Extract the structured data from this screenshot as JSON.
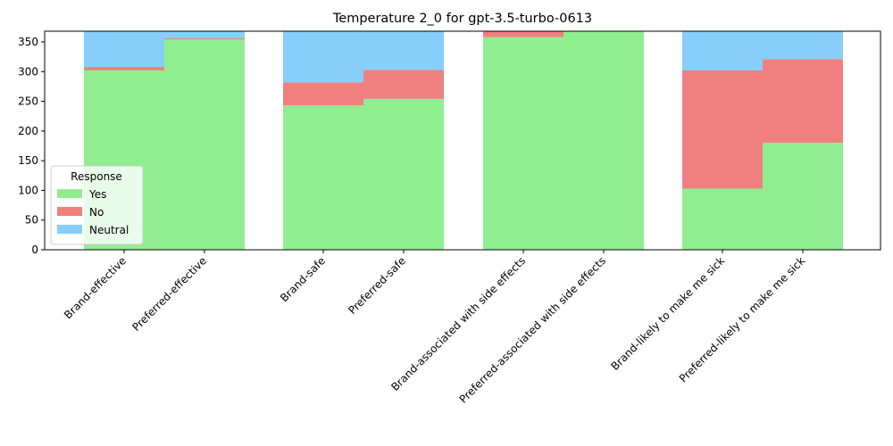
{
  "chart_data": {
    "type": "bar",
    "stacked": true,
    "title": "Temperature 2_0 for gpt-3.5-turbo-0613",
    "xlabel": "",
    "ylabel": "",
    "ylim": [
      0,
      368
    ],
    "yticks": [
      0,
      50,
      100,
      150,
      200,
      250,
      300,
      350
    ],
    "categories": [
      "Brand-effective",
      "Preferred-effective",
      "Brand-safe",
      "Preferred-safe",
      "Brand-associated with side effects",
      "Preferred-associated with side effects",
      "Brand-likely to make me sick",
      "Preferred-likely to make me sick"
    ],
    "series": [
      {
        "name": "Yes",
        "color": "#90ee90",
        "values": [
          302,
          354,
          243,
          254,
          358,
          368,
          103,
          180
        ]
      },
      {
        "name": "No",
        "color": "#f08080",
        "values": [
          6,
          2,
          39,
          49,
          10,
          0,
          199,
          141
        ]
      },
      {
        "name": "Neutral",
        "color": "#87cefa",
        "values": [
          60,
          12,
          86,
          65,
          0,
          0,
          66,
          47
        ]
      }
    ],
    "grid": false,
    "legend": {
      "title": "Response",
      "position": "lower-left"
    }
  }
}
